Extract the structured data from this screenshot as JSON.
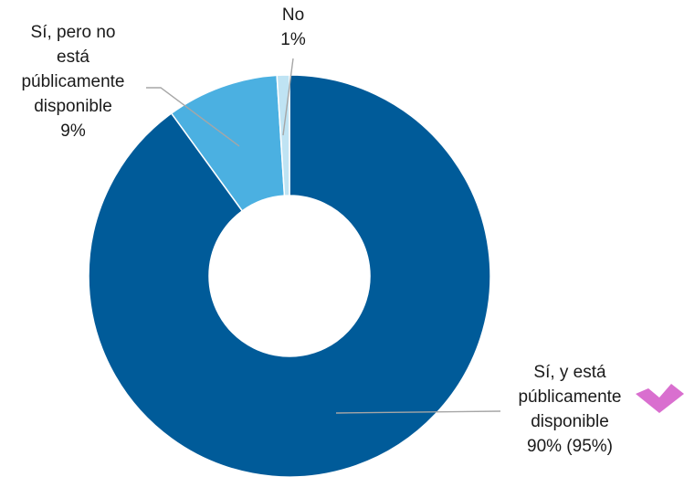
{
  "chart_data": {
    "type": "pie",
    "style": "donut",
    "slices": [
      {
        "lines": [
          "Sí, y está",
          "públicamente",
          "disponible"
        ],
        "value_label": "90% (95%)",
        "value": 90,
        "color": "#005b99"
      },
      {
        "lines": [
          "Sí, pero no",
          "está",
          "públicamente",
          "disponible"
        ],
        "value_label": "9%",
        "value": 9,
        "color": "#4bb0e1"
      },
      {
        "lines": [
          "No"
        ],
        "value_label": "1%",
        "value": 1,
        "color": "#bfe3f3"
      }
    ],
    "marker": {
      "icon": "chevron-down-icon",
      "color": "#d96fcf"
    }
  }
}
